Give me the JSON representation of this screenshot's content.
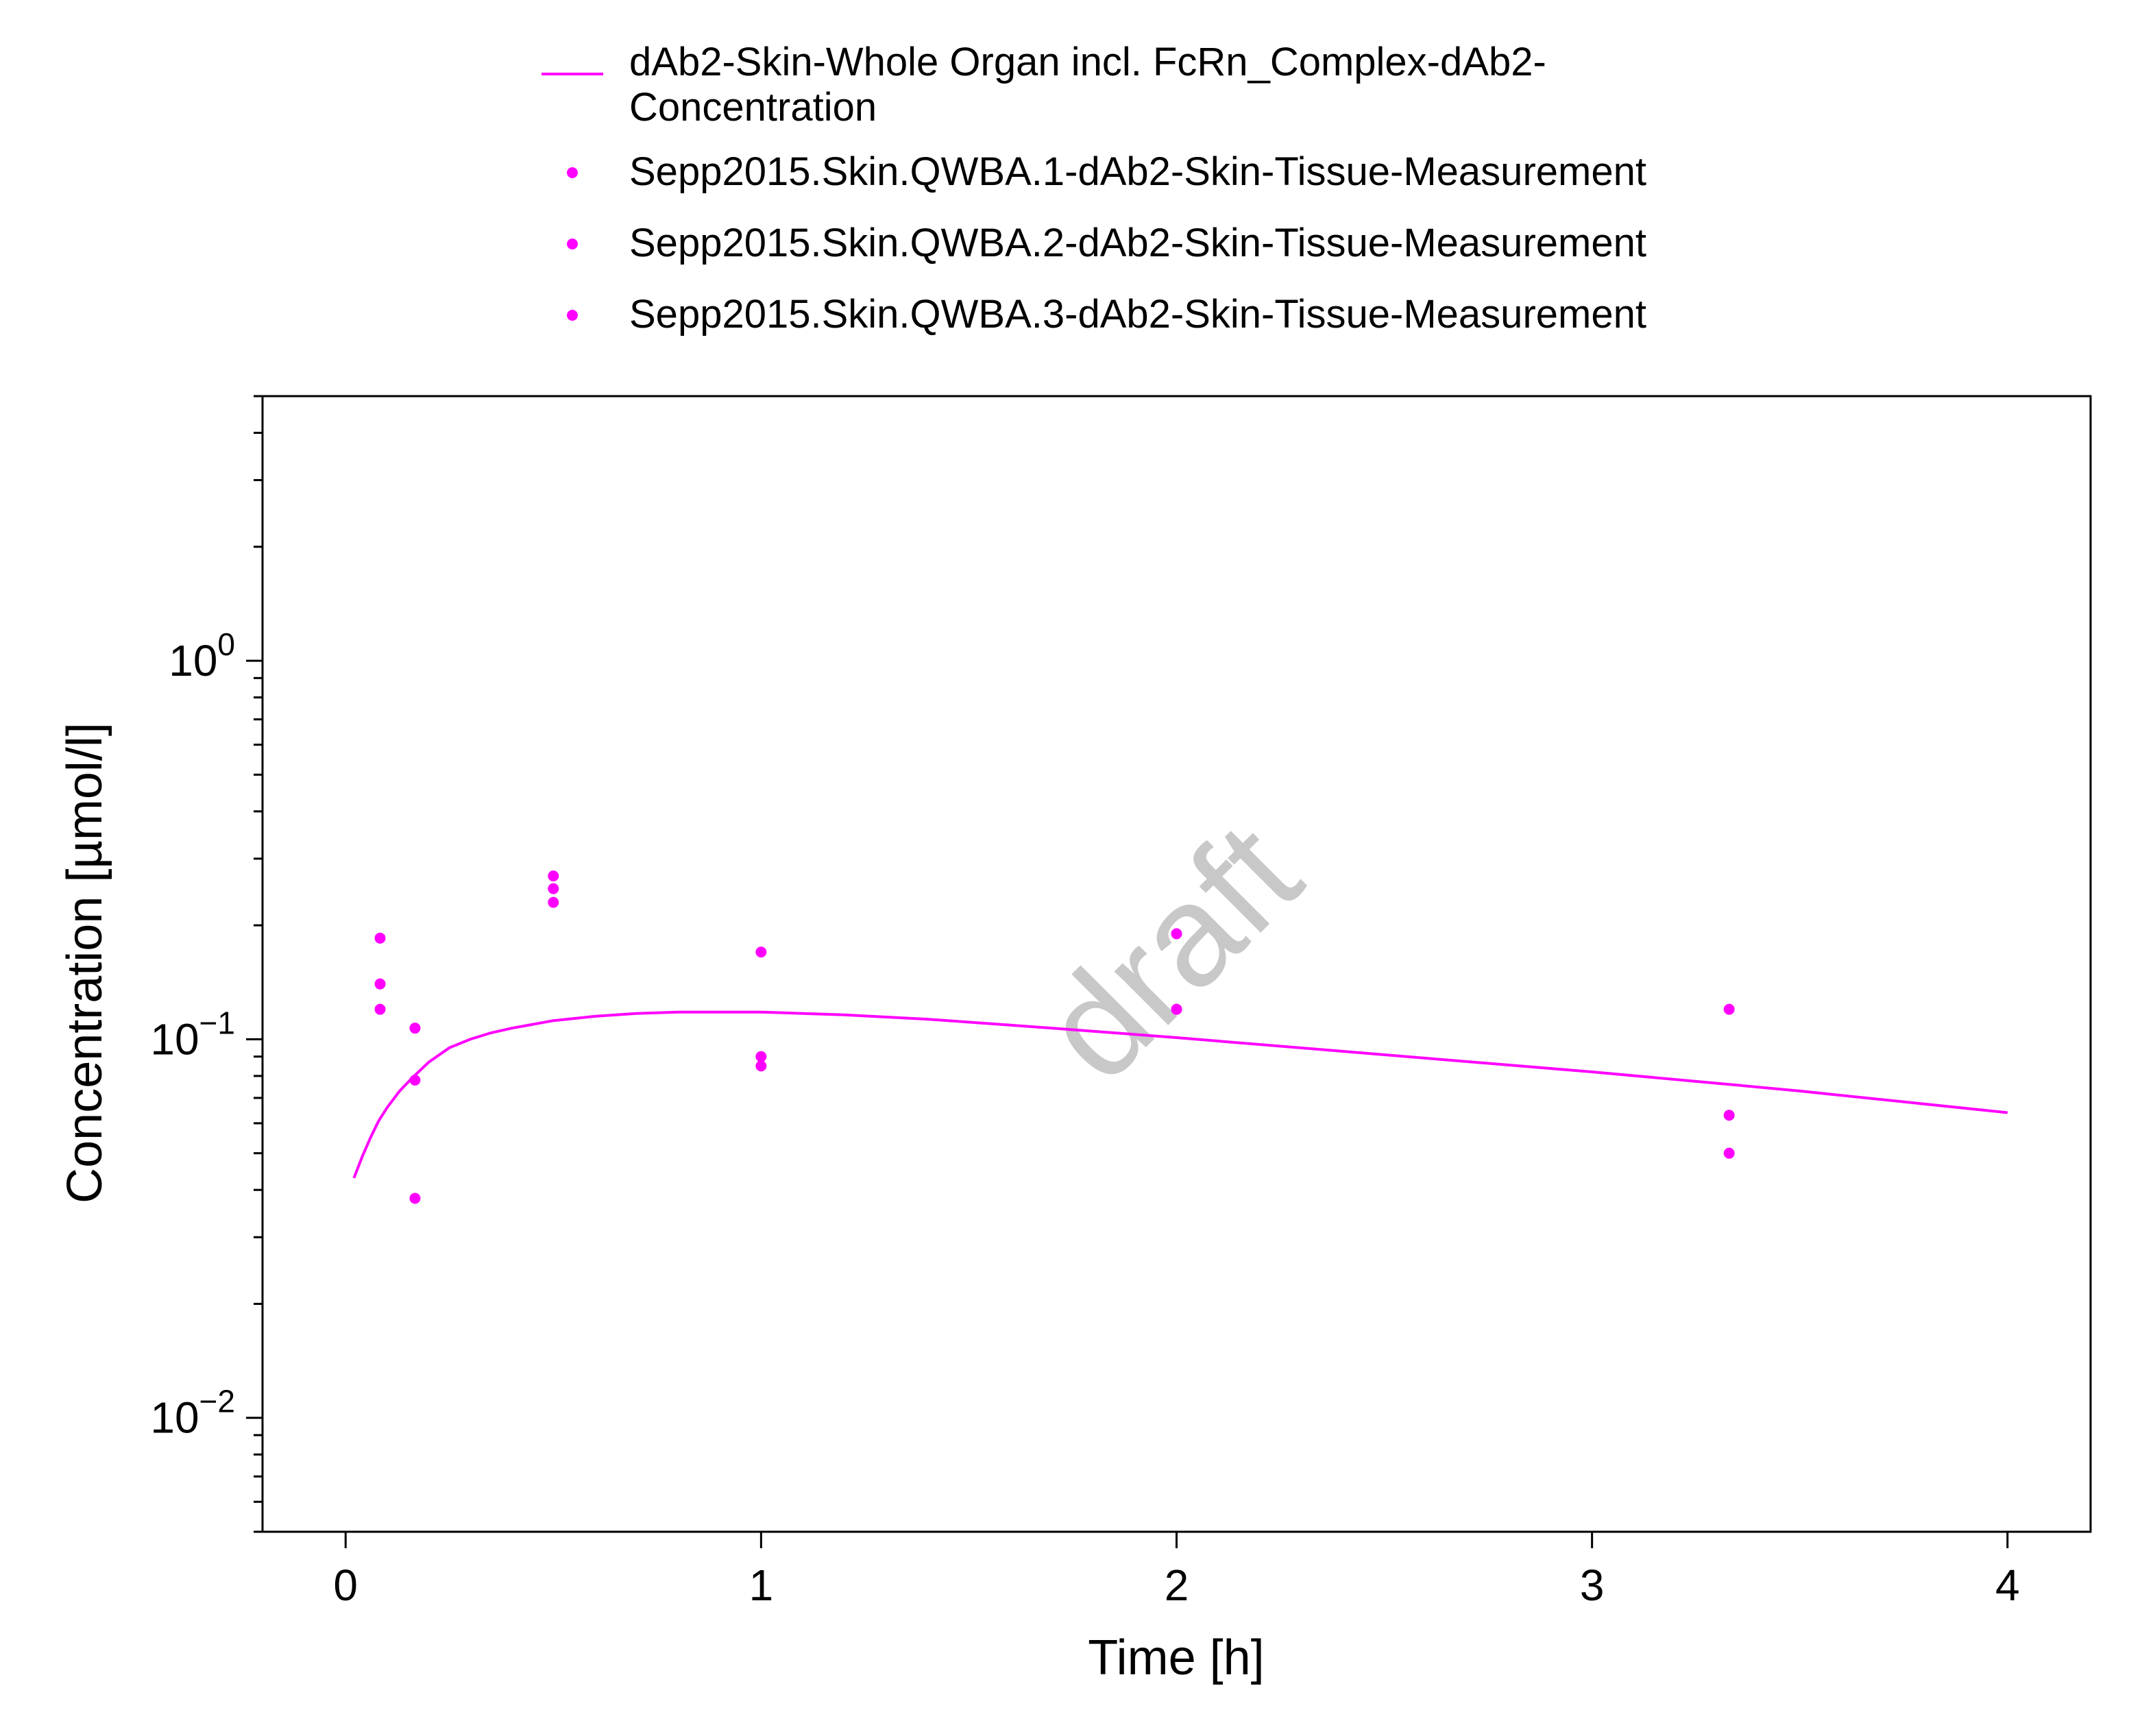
{
  "chart_data": {
    "type": "line",
    "xlabel": "Time [h]",
    "ylabel": "Concentration [µmol/l]",
    "xlim": [
      -0.2,
      4.2
    ],
    "ylim": [
      0.005,
      5
    ],
    "y_scale": "log",
    "grid": false,
    "legend_position": "top",
    "x_ticks": [
      "0",
      "1",
      "2",
      "3",
      "4"
    ],
    "y_ticks": [
      {
        "base": "10",
        "exp": "−2"
      },
      {
        "base": "10",
        "exp": "−1"
      },
      {
        "base": "10",
        "exp": "0"
      }
    ],
    "watermark": "draft",
    "color": "#ff00ff",
    "series": [
      {
        "name": "dAb2-Skin-Whole Organ incl. FcRn_Complex-dAb2-Concentration",
        "legend_lines": [
          "dAb2-Skin-Whole Organ incl. FcRn_Complex-dAb2-",
          "Concentration"
        ],
        "kind": "line",
        "color": "#ff00ff",
        "x": [
          0.02,
          0.04,
          0.06,
          0.08,
          0.1,
          0.13,
          0.16,
          0.2,
          0.25,
          0.3,
          0.35,
          0.4,
          0.5,
          0.6,
          0.7,
          0.8,
          0.9,
          1.0,
          1.1,
          1.2,
          1.4,
          1.6,
          1.8,
          2.0,
          2.5,
          3.0,
          3.33,
          3.5,
          4.0
        ],
        "y": [
          0.043,
          0.049,
          0.055,
          0.061,
          0.066,
          0.073,
          0.079,
          0.087,
          0.095,
          0.1,
          0.104,
          0.107,
          0.112,
          0.115,
          0.117,
          0.118,
          0.118,
          0.118,
          0.117,
          0.116,
          0.113,
          0.109,
          0.105,
          0.101,
          0.091,
          0.082,
          0.076,
          0.073,
          0.064
        ]
      },
      {
        "name": "Sepp2015.Skin.QWBA.1-dAb2-Skin-Tissue-Measurement",
        "kind": "scatter",
        "color": "#ff00ff",
        "x": [
          0.083,
          0.167,
          0.5,
          1.0,
          2.0,
          3.33
        ],
        "y": [
          0.185,
          0.107,
          0.27,
          0.17,
          0.19,
          0.12
        ]
      },
      {
        "name": "Sepp2015.Skin.QWBA.2-dAb2-Skin-Tissue-Measurement",
        "kind": "scatter",
        "color": "#ff00ff",
        "x": [
          0.083,
          0.167,
          0.5,
          1.0,
          2.0,
          3.33
        ],
        "y": [
          0.14,
          0.078,
          0.25,
          0.09,
          0.12,
          0.063
        ]
      },
      {
        "name": "Sepp2015.Skin.QWBA.3-dAb2-Skin-Tissue-Measurement",
        "kind": "scatter",
        "color": "#ff00ff",
        "x": [
          0.083,
          0.167,
          0.5,
          1.0,
          2.0,
          3.33
        ],
        "y": [
          0.12,
          0.038,
          0.23,
          0.085,
          0.12,
          0.05
        ]
      }
    ]
  }
}
